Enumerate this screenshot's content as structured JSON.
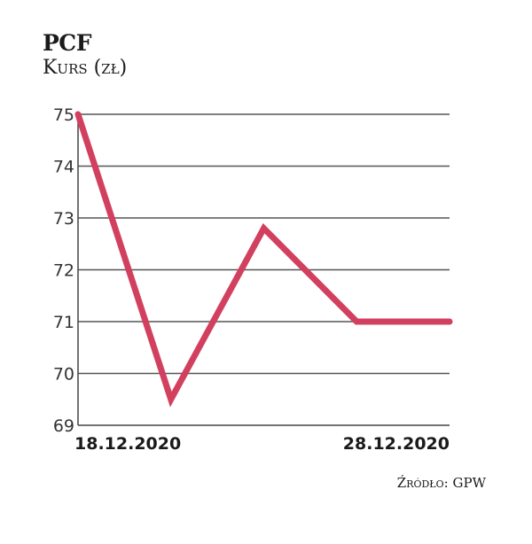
{
  "chart_data": {
    "type": "line",
    "title": "PCF",
    "subtitle": "Kurs (zł)",
    "source": "Źródło: GPW",
    "xlabel": "",
    "ylabel": "",
    "x": [
      "18.12.2020",
      "",
      "",
      "",
      "28.12.2020"
    ],
    "x_tick_labels": [
      "18.12.2020",
      "28.12.2020"
    ],
    "series": [
      {
        "name": "PCF",
        "values": [
          75.0,
          69.5,
          72.8,
          71.0,
          71.0
        ],
        "color": "#d2405f"
      }
    ],
    "ylim": [
      69,
      75
    ],
    "y_ticks": [
      75,
      74,
      73,
      72,
      71,
      70,
      69
    ],
    "grid": true,
    "legend": "none"
  }
}
